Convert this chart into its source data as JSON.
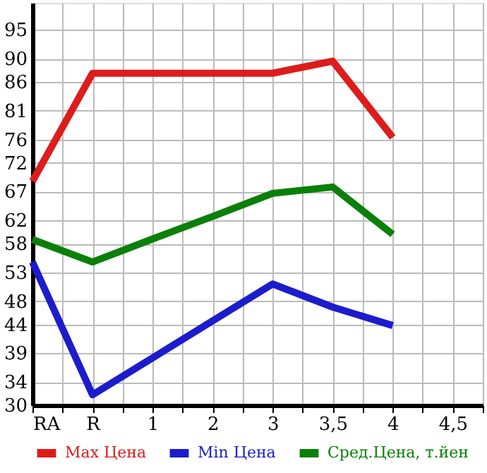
{
  "chart_data": {
    "type": "line",
    "categories": [
      "RA",
      "R",
      "1",
      "2",
      "3",
      "3,5",
      "4",
      "4,5"
    ],
    "series": [
      {
        "name": "Max Цена",
        "color": "#dd1c1c",
        "values": [
          68.8,
          87.5,
          87.5,
          87.5,
          87.5,
          89.6,
          76.4,
          null
        ]
      },
      {
        "name": "Min Цена",
        "color": "#1c1ccc",
        "values": [
          54.8,
          31.8,
          38.2,
          44.6,
          51.0,
          47.0,
          43.8,
          null
        ]
      },
      {
        "name": "Сред.Цена, т.йен",
        "color": "#0a800a",
        "values": [
          58.7,
          54.8,
          58.8,
          62.7,
          66.7,
          67.8,
          59.6,
          null
        ]
      }
    ],
    "ylim": [
      30,
      99.7
    ],
    "yticks": [
      30,
      34,
      39,
      44,
      48,
      53,
      58,
      62,
      67,
      72,
      76,
      81,
      86,
      90,
      95
    ],
    "grid": true,
    "legend": "bottom",
    "line_style": "solid",
    "marker": "none"
  }
}
